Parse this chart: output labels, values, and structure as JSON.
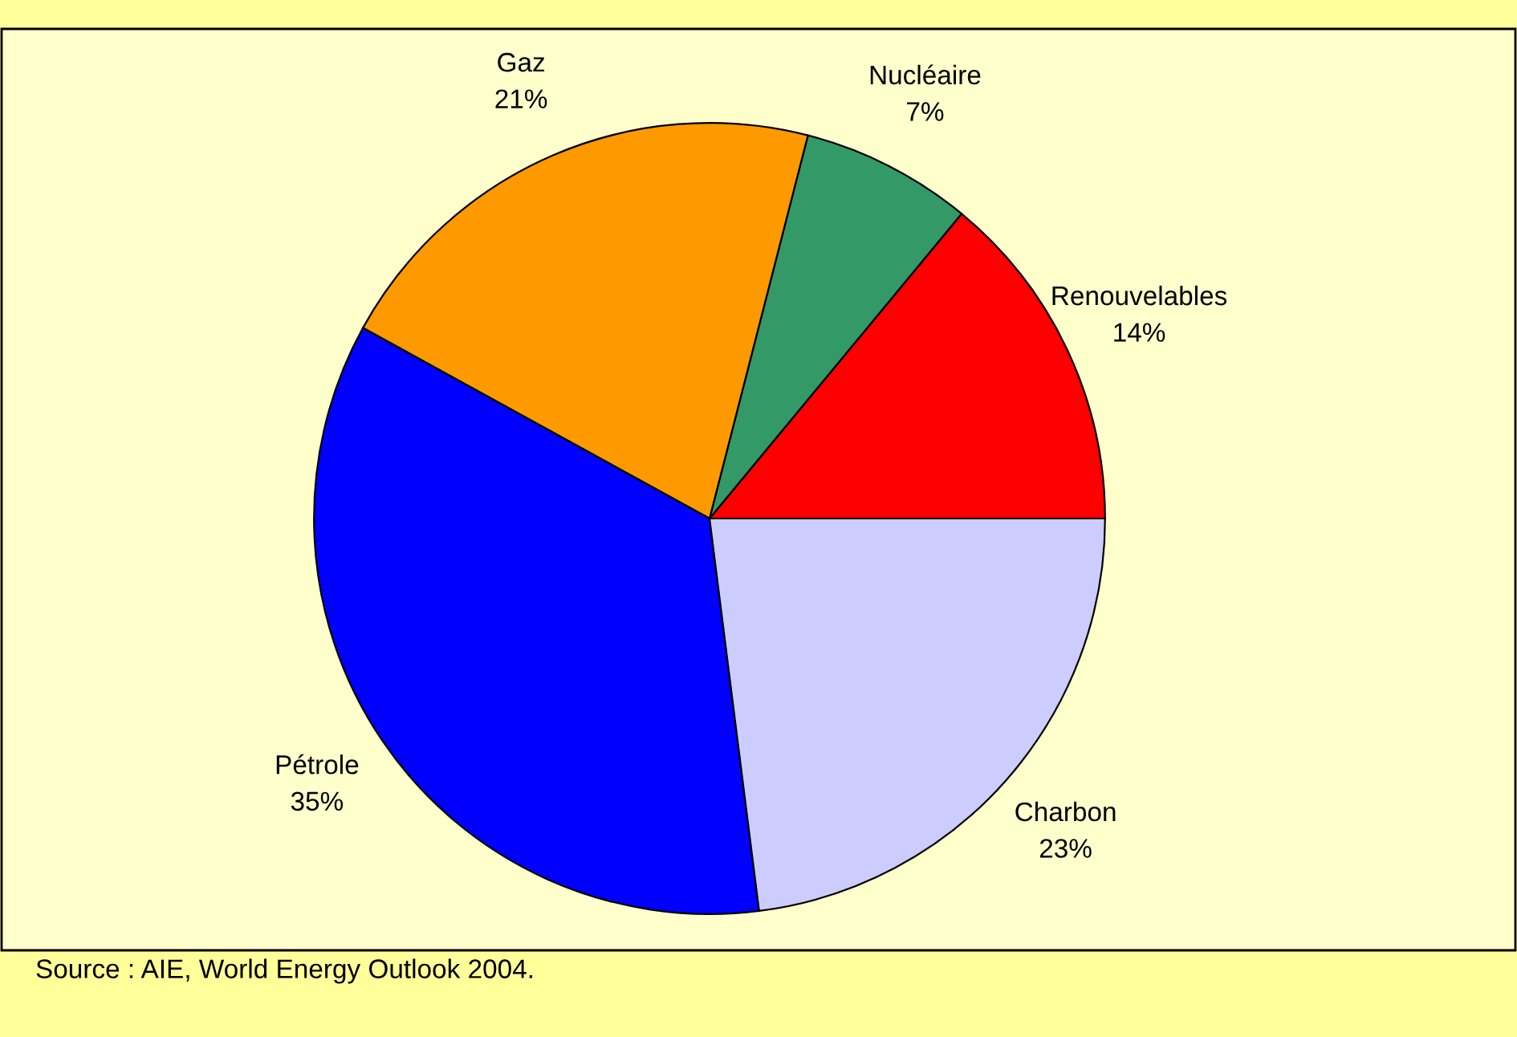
{
  "chart_data": {
    "type": "pie",
    "categories": [
      "Renouvelables",
      "Nucléaire",
      "Gaz",
      "Pétrole",
      "Charbon"
    ],
    "values": [
      14,
      7,
      21,
      35,
      23
    ],
    "value_labels": [
      "14%",
      "7%",
      "21%",
      "35%",
      "23%"
    ],
    "colors": [
      "#ff0000",
      "#339966",
      "#ff9900",
      "#0000ff",
      "#ccccff"
    ],
    "legend": false,
    "annotations": [
      "Source : AIE, World Energy Outlook 2004."
    ]
  }
}
